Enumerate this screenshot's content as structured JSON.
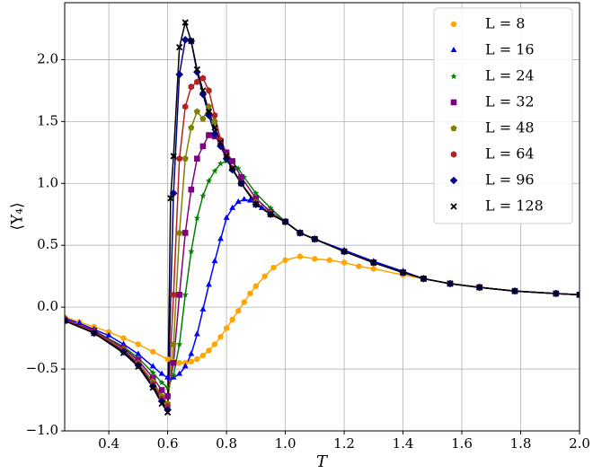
{
  "chart_data": {
    "type": "line",
    "x_label": "T",
    "y_label": "⟨Υ₄⟩",
    "xlim": [
      0.25,
      2.0
    ],
    "ylim": [
      -1.0,
      2.46
    ],
    "xticks": [
      0.4,
      0.6,
      0.8,
      {
        "value": 1,
        "label": "1.0"
      },
      1.2,
      1.4,
      1.6,
      1.8,
      {
        "value": 2,
        "label": "2.0"
      }
    ],
    "yticks": [
      {
        "value": -1,
        "label": "−1.0"
      },
      {
        "value": -0.5,
        "label": "−0.5"
      },
      {
        "value": 0,
        "label": "0.0"
      },
      0.5,
      {
        "value": 1,
        "label": "1.0"
      },
      1.5,
      {
        "value": 2,
        "label": "2.0"
      }
    ],
    "grid": true,
    "legend": "upper right",
    "series": [
      {
        "name": "L = 8",
        "color": "#ffa500",
        "marker": "circle",
        "x": [
          0.25,
          0.3,
          0.35,
          0.4,
          0.45,
          0.5,
          0.55,
          0.6,
          0.62,
          0.64,
          0.66,
          0.68,
          0.7,
          0.72,
          0.74,
          0.76,
          0.78,
          0.8,
          0.82,
          0.84,
          0.86,
          0.88,
          0.9,
          0.93,
          0.96,
          1.0,
          1.05,
          1.1,
          1.15,
          1.2,
          1.25,
          1.3,
          1.4,
          1.47,
          1.56,
          1.66,
          1.78,
          1.92,
          2.0
        ],
        "values": [
          -0.08,
          -0.12,
          -0.16,
          -0.2,
          -0.25,
          -0.3,
          -0.36,
          -0.42,
          -0.44,
          -0.45,
          -0.45,
          -0.44,
          -0.42,
          -0.39,
          -0.35,
          -0.3,
          -0.24,
          -0.17,
          -0.1,
          -0.03,
          0.04,
          0.11,
          0.17,
          0.25,
          0.32,
          0.38,
          0.41,
          0.39,
          0.38,
          0.36,
          0.33,
          0.31,
          0.26,
          0.23,
          0.19,
          0.16,
          0.13,
          0.11,
          0.1
        ]
      },
      {
        "name": "L = 16",
        "color": "#0000ff",
        "marker": "triangle",
        "x": [
          0.25,
          0.3,
          0.35,
          0.4,
          0.45,
          0.5,
          0.55,
          0.58,
          0.6,
          0.62,
          0.64,
          0.66,
          0.68,
          0.7,
          0.72,
          0.74,
          0.76,
          0.78,
          0.8,
          0.82,
          0.84,
          0.86,
          0.88,
          0.9,
          0.92,
          0.95,
          1.0,
          1.05,
          1.1,
          1.2,
          1.3,
          1.4,
          1.47,
          1.56,
          1.66,
          1.78,
          1.92,
          2.0
        ],
        "values": [
          -0.09,
          -0.13,
          -0.18,
          -0.23,
          -0.3,
          -0.38,
          -0.48,
          -0.54,
          -0.57,
          -0.57,
          -0.54,
          -0.48,
          -0.38,
          -0.22,
          -0.02,
          0.18,
          0.37,
          0.55,
          0.72,
          0.8,
          0.85,
          0.87,
          0.86,
          0.84,
          0.8,
          0.75,
          0.69,
          0.6,
          0.55,
          0.46,
          0.37,
          0.29,
          0.23,
          0.19,
          0.16,
          0.13,
          0.11,
          0.1
        ]
      },
      {
        "name": "L = 24",
        "color": "#008000",
        "marker": "star",
        "x": [
          0.25,
          0.35,
          0.45,
          0.5,
          0.55,
          0.58,
          0.6,
          0.62,
          0.64,
          0.66,
          0.68,
          0.7,
          0.72,
          0.74,
          0.76,
          0.78,
          0.8,
          0.82,
          0.84,
          0.86,
          0.9,
          0.95,
          1.0,
          1.05,
          1.1,
          1.2,
          1.3,
          1.4,
          1.47,
          1.56,
          1.66,
          1.78,
          1.92,
          2.0
        ],
        "values": [
          -0.1,
          -0.19,
          -0.32,
          -0.41,
          -0.53,
          -0.61,
          -0.65,
          -0.55,
          -0.3,
          0.1,
          0.45,
          0.72,
          0.9,
          1.02,
          1.1,
          1.16,
          1.18,
          1.17,
          1.12,
          1.05,
          0.92,
          0.8,
          0.69,
          0.6,
          0.55,
          0.45,
          0.36,
          0.28,
          0.23,
          0.19,
          0.16,
          0.13,
          0.11,
          0.1
        ]
      },
      {
        "name": "L = 32",
        "color": "#800080",
        "marker": "square",
        "x": [
          0.25,
          0.35,
          0.45,
          0.5,
          0.55,
          0.58,
          0.6,
          0.62,
          0.64,
          0.66,
          0.68,
          0.7,
          0.72,
          0.74,
          0.76,
          0.78,
          0.8,
          0.82,
          0.85,
          0.9,
          0.95,
          1.0,
          1.05,
          1.1,
          1.2,
          1.3,
          1.4,
          1.47,
          1.56,
          1.66,
          1.78,
          1.92,
          2.0
        ],
        "values": [
          -0.1,
          -0.19,
          -0.33,
          -0.43,
          -0.57,
          -0.67,
          -0.72,
          -0.45,
          0.1,
          0.6,
          0.95,
          1.2,
          1.3,
          1.39,
          1.38,
          1.34,
          1.25,
          1.18,
          1.05,
          0.88,
          0.77,
          0.69,
          0.6,
          0.55,
          0.45,
          0.36,
          0.28,
          0.23,
          0.19,
          0.16,
          0.13,
          0.11,
          0.1
        ]
      },
      {
        "name": "L = 48",
        "color": "#808000",
        "marker": "pentagon",
        "x": [
          0.25,
          0.35,
          0.45,
          0.5,
          0.55,
          0.58,
          0.6,
          0.62,
          0.64,
          0.66,
          0.68,
          0.7,
          0.72,
          0.74,
          0.76,
          0.78,
          0.8,
          0.82,
          0.85,
          0.9,
          0.95,
          1.0,
          1.05,
          1.1,
          1.2,
          1.3,
          1.4,
          1.47,
          1.56,
          1.66,
          1.78,
          1.92,
          2.0
        ],
        "values": [
          -0.1,
          -0.2,
          -0.34,
          -0.45,
          -0.6,
          -0.72,
          -0.78,
          -0.3,
          0.6,
          1.2,
          1.45,
          1.58,
          1.52,
          1.62,
          1.5,
          1.35,
          1.22,
          1.12,
          1.0,
          0.85,
          0.76,
          0.69,
          0.6,
          0.55,
          0.45,
          0.36,
          0.28,
          0.23,
          0.19,
          0.16,
          0.13,
          0.11,
          0.1
        ]
      },
      {
        "name": "L = 64",
        "color": "#b22222",
        "marker": "hexagon",
        "x": [
          0.25,
          0.35,
          0.45,
          0.5,
          0.55,
          0.58,
          0.6,
          0.62,
          0.64,
          0.66,
          0.68,
          0.7,
          0.72,
          0.74,
          0.76,
          0.78,
          0.8,
          0.82,
          0.85,
          0.9,
          0.95,
          1.0,
          1.05,
          1.1,
          1.2,
          1.3,
          1.4,
          1.47,
          1.56,
          1.66,
          1.78,
          1.92,
          2.0
        ],
        "values": [
          -0.1,
          -0.2,
          -0.35,
          -0.46,
          -0.62,
          -0.74,
          -0.8,
          0.1,
          1.2,
          1.62,
          1.78,
          1.82,
          1.85,
          1.75,
          1.55,
          1.35,
          1.22,
          1.12,
          1.0,
          0.84,
          0.75,
          0.69,
          0.6,
          0.55,
          0.45,
          0.36,
          0.28,
          0.23,
          0.19,
          0.16,
          0.13,
          0.11,
          0.1
        ]
      },
      {
        "name": "L = 96",
        "color": "#00008b",
        "marker": "diamond",
        "x": [
          0.25,
          0.35,
          0.45,
          0.5,
          0.55,
          0.58,
          0.6,
          0.62,
          0.64,
          0.66,
          0.68,
          0.7,
          0.72,
          0.74,
          0.76,
          0.78,
          0.8,
          0.82,
          0.85,
          0.9,
          0.95,
          1.0,
          1.05,
          1.1,
          1.2,
          1.3,
          1.4,
          1.47,
          1.56,
          1.66,
          1.78,
          1.92,
          2.0
        ],
        "values": [
          -0.11,
          -0.21,
          -0.36,
          -0.47,
          -0.64,
          -0.76,
          -0.83,
          0.92,
          1.88,
          2.16,
          2.15,
          1.9,
          1.72,
          1.55,
          1.4,
          1.3,
          1.2,
          1.11,
          1.0,
          0.83,
          0.75,
          0.69,
          0.6,
          0.55,
          0.45,
          0.36,
          0.28,
          0.23,
          0.19,
          0.16,
          0.13,
          0.11,
          0.1
        ]
      },
      {
        "name": "L = 128",
        "color": "#000000",
        "marker": "x",
        "x": [
          0.25,
          0.35,
          0.45,
          0.5,
          0.55,
          0.58,
          0.6,
          0.61,
          0.62,
          0.64,
          0.66,
          0.68,
          0.7,
          0.72,
          0.74,
          0.76,
          0.78,
          0.8,
          0.82,
          0.85,
          0.9,
          0.95,
          1.0,
          1.05,
          1.1,
          1.2,
          1.3,
          1.4,
          1.47,
          1.56,
          1.66,
          1.78,
          1.92,
          2.0
        ],
        "values": [
          -0.11,
          -0.21,
          -0.37,
          -0.48,
          -0.65,
          -0.78,
          -0.85,
          0.88,
          1.22,
          2.1,
          2.3,
          2.15,
          1.92,
          1.75,
          1.58,
          1.45,
          1.33,
          1.22,
          1.12,
          1.0,
          0.83,
          0.75,
          0.69,
          0.6,
          0.55,
          0.45,
          0.36,
          0.28,
          0.23,
          0.19,
          0.16,
          0.13,
          0.11,
          0.1
        ]
      }
    ]
  }
}
